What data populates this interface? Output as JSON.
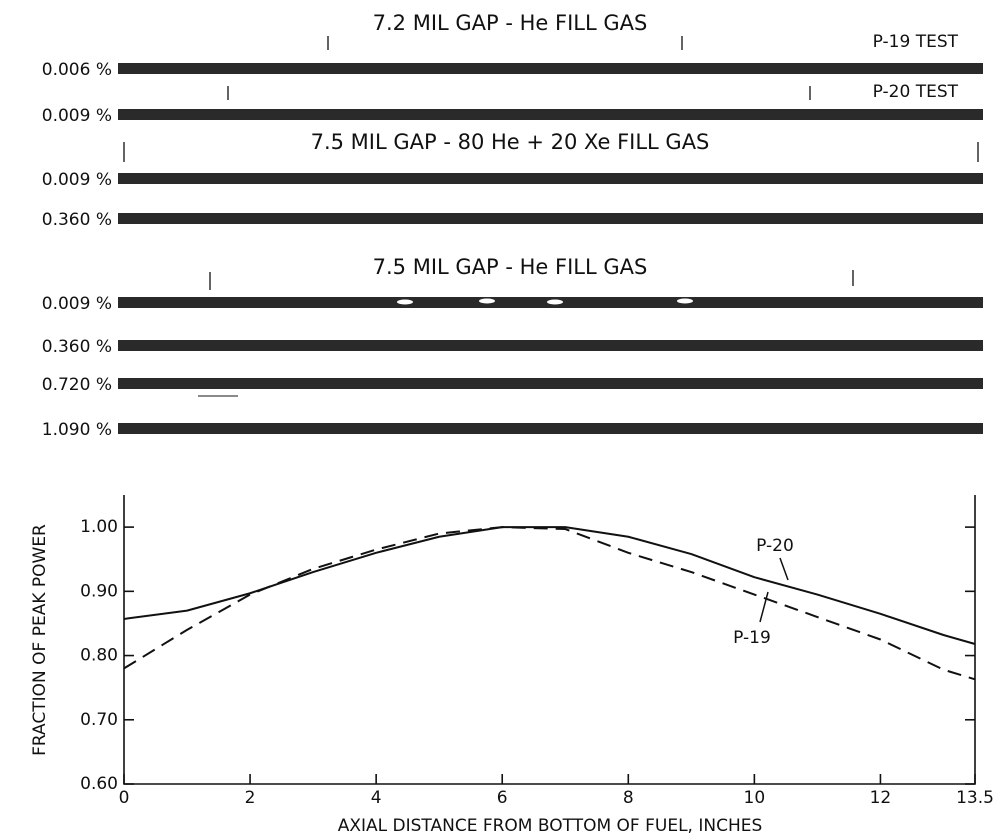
{
  "rods": {
    "groups": [
      {
        "title": "7.2 MIL GAP - He FILL GAS",
        "rows": [
          {
            "label": "0.006 %",
            "test": "P-19 TEST"
          },
          {
            "label": "0.009 %",
            "test": "P-20 TEST"
          }
        ]
      },
      {
        "title": "7.5 MIL GAP - 80 He + 20 Xe FILL GAS",
        "rows": [
          {
            "label": "0.009 %"
          },
          {
            "label": "0.360 %"
          }
        ]
      },
      {
        "title": "7.5 MIL GAP - He FILL GAS",
        "rows": [
          {
            "label": "0.009 %"
          },
          {
            "label": "0.360 %"
          },
          {
            "label": "0.720 %"
          },
          {
            "label": "1.090 %"
          }
        ]
      }
    ]
  },
  "chart_data": {
    "type": "line",
    "x_label": "AXIAL DISTANCE FROM BOTTOM OF FUEL, INCHES",
    "y_label": "FRACTION OF PEAK POWER",
    "x": [
      0,
      1,
      2,
      3,
      4,
      5,
      6,
      7,
      8,
      9,
      10,
      11,
      12,
      13,
      13.5
    ],
    "series": [
      {
        "name": "P-20",
        "color": "#111111",
        "dash": false,
        "values": [
          0.857,
          0.87,
          0.897,
          0.93,
          0.96,
          0.985,
          1.0,
          1.0,
          0.985,
          0.958,
          0.922,
          0.895,
          0.865,
          0.832,
          0.818
        ]
      },
      {
        "name": "P-19",
        "color": "#111111",
        "dash": true,
        "values": [
          0.78,
          0.84,
          0.895,
          0.935,
          0.965,
          0.99,
          1.0,
          0.997,
          0.96,
          0.93,
          0.895,
          0.86,
          0.825,
          0.778,
          0.763
        ]
      }
    ],
    "xlim": [
      0,
      13.5
    ],
    "ylim": [
      0.6,
      1.05
    ],
    "xticks": [
      0,
      2,
      4,
      6,
      8,
      10,
      12,
      13.5
    ],
    "yticks": [
      {
        "value": 0.6,
        "label": "0.60"
      },
      {
        "value": 0.7,
        "label": "0.70"
      },
      {
        "value": 0.8,
        "label": "0.80"
      },
      {
        "value": 0.9,
        "label": "0.90"
      },
      {
        "value": 1.0,
        "label": "1.00"
      }
    ]
  }
}
